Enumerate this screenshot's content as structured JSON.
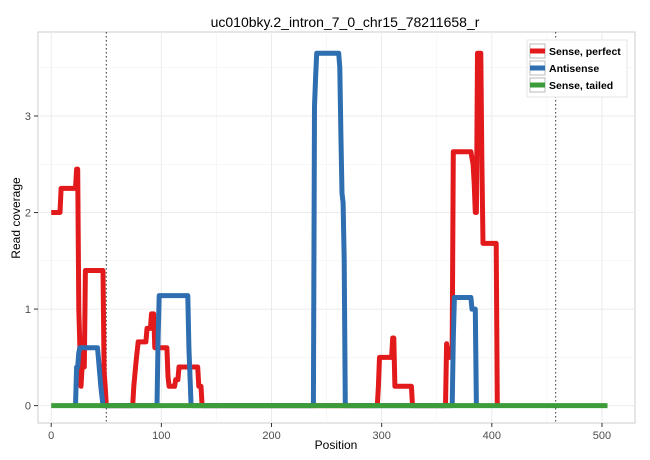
{
  "chart_data": {
    "type": "line",
    "title": "uc010bky.2_intron_7_0_chr15_78211658_r",
    "xlabel": "Position",
    "ylabel": "Read coverage",
    "xlim": [
      -12,
      530
    ],
    "ylim": [
      -0.18,
      3.87
    ],
    "x_ticks": [
      0,
      100,
      200,
      300,
      400,
      500
    ],
    "y_ticks": [
      0,
      1,
      2,
      3
    ],
    "grid": true,
    "legend_position": "top-right",
    "reference_lines": [
      50,
      458
    ],
    "series": [
      {
        "name": "Sense, perfect",
        "color": "#e31a1c",
        "points": [
          [
            0,
            2.0
          ],
          [
            8,
            2.0
          ],
          [
            9,
            2.25
          ],
          [
            22,
            2.25
          ],
          [
            23,
            2.45
          ],
          [
            24,
            2.45
          ],
          [
            25,
            1.0
          ],
          [
            26,
            0.6
          ],
          [
            27,
            0.2
          ],
          [
            28,
            0.4
          ],
          [
            30,
            0.4
          ],
          [
            31,
            1.4
          ],
          [
            47,
            1.4
          ],
          [
            48,
            0.35
          ],
          [
            49,
            0.2
          ],
          [
            50,
            0
          ],
          [
            74,
            0
          ],
          [
            75,
            0.2
          ],
          [
            77,
            0.45
          ],
          [
            79,
            0.66
          ],
          [
            86,
            0.66
          ],
          [
            87,
            0.8
          ],
          [
            90,
            0.8
          ],
          [
            91,
            0.95
          ],
          [
            93,
            0.95
          ],
          [
            94,
            0.6
          ],
          [
            104,
            0.6
          ],
          [
            105,
            0.6
          ],
          [
            106,
            0.3
          ],
          [
            107,
            0.2
          ],
          [
            112,
            0.2
          ],
          [
            113,
            0.27
          ],
          [
            115,
            0.27
          ],
          [
            116,
            0.4
          ],
          [
            133,
            0.4
          ],
          [
            134,
            0.2
          ],
          [
            136,
            0.2
          ],
          [
            137,
            0
          ],
          [
            296,
            0
          ],
          [
            297,
            0.2
          ],
          [
            298,
            0.5
          ],
          [
            309,
            0.5
          ],
          [
            310,
            0.7
          ],
          [
            311,
            0.7
          ],
          [
            312,
            0.2
          ],
          [
            327,
            0.2
          ],
          [
            328,
            0
          ],
          [
            358,
            0
          ],
          [
            359,
            0.64
          ],
          [
            360,
            0.5
          ],
          [
            362,
            0.5
          ],
          [
            364,
            0.63
          ],
          [
            365,
            2.63
          ],
          [
            381,
            2.63
          ],
          [
            383,
            2.5
          ],
          [
            384,
            2.3
          ],
          [
            385,
            2.0
          ],
          [
            386,
            2.0
          ],
          [
            387,
            3.65
          ],
          [
            390,
            3.65
          ],
          [
            391,
            2.5
          ],
          [
            392,
            1.68
          ],
          [
            404,
            1.68
          ],
          [
            405,
            0
          ]
        ]
      },
      {
        "name": "Antisense",
        "color": "#2f6eb0",
        "points": [
          [
            22,
            0
          ],
          [
            23,
            0.4
          ],
          [
            24,
            0.4
          ],
          [
            25,
            0.55
          ],
          [
            26,
            0.6
          ],
          [
            42,
            0.6
          ],
          [
            43,
            0.47
          ],
          [
            45,
            0.2
          ],
          [
            47,
            0
          ],
          [
            96,
            0
          ],
          [
            97,
            0.7
          ],
          [
            98,
            1.14
          ],
          [
            124,
            1.14
          ],
          [
            125,
            0.6
          ],
          [
            127,
            0
          ],
          [
            238,
            0
          ],
          [
            239,
            3.1
          ],
          [
            240,
            3.4
          ],
          [
            241,
            3.65
          ],
          [
            261,
            3.65
          ],
          [
            262,
            3.5
          ],
          [
            263,
            2.8
          ],
          [
            264,
            2.2
          ],
          [
            265,
            2.1
          ],
          [
            266,
            1.5
          ],
          [
            267,
            0
          ],
          [
            364,
            0
          ],
          [
            365,
            0.7
          ],
          [
            366,
            1.12
          ],
          [
            381,
            1.12
          ],
          [
            382,
            1.0
          ],
          [
            385,
            1.0
          ],
          [
            386,
            0
          ]
        ]
      },
      {
        "name": "Sense, tailed",
        "color": "#3d9c3a",
        "points": [
          [
            0,
            0
          ],
          [
            505,
            0
          ]
        ]
      }
    ]
  }
}
